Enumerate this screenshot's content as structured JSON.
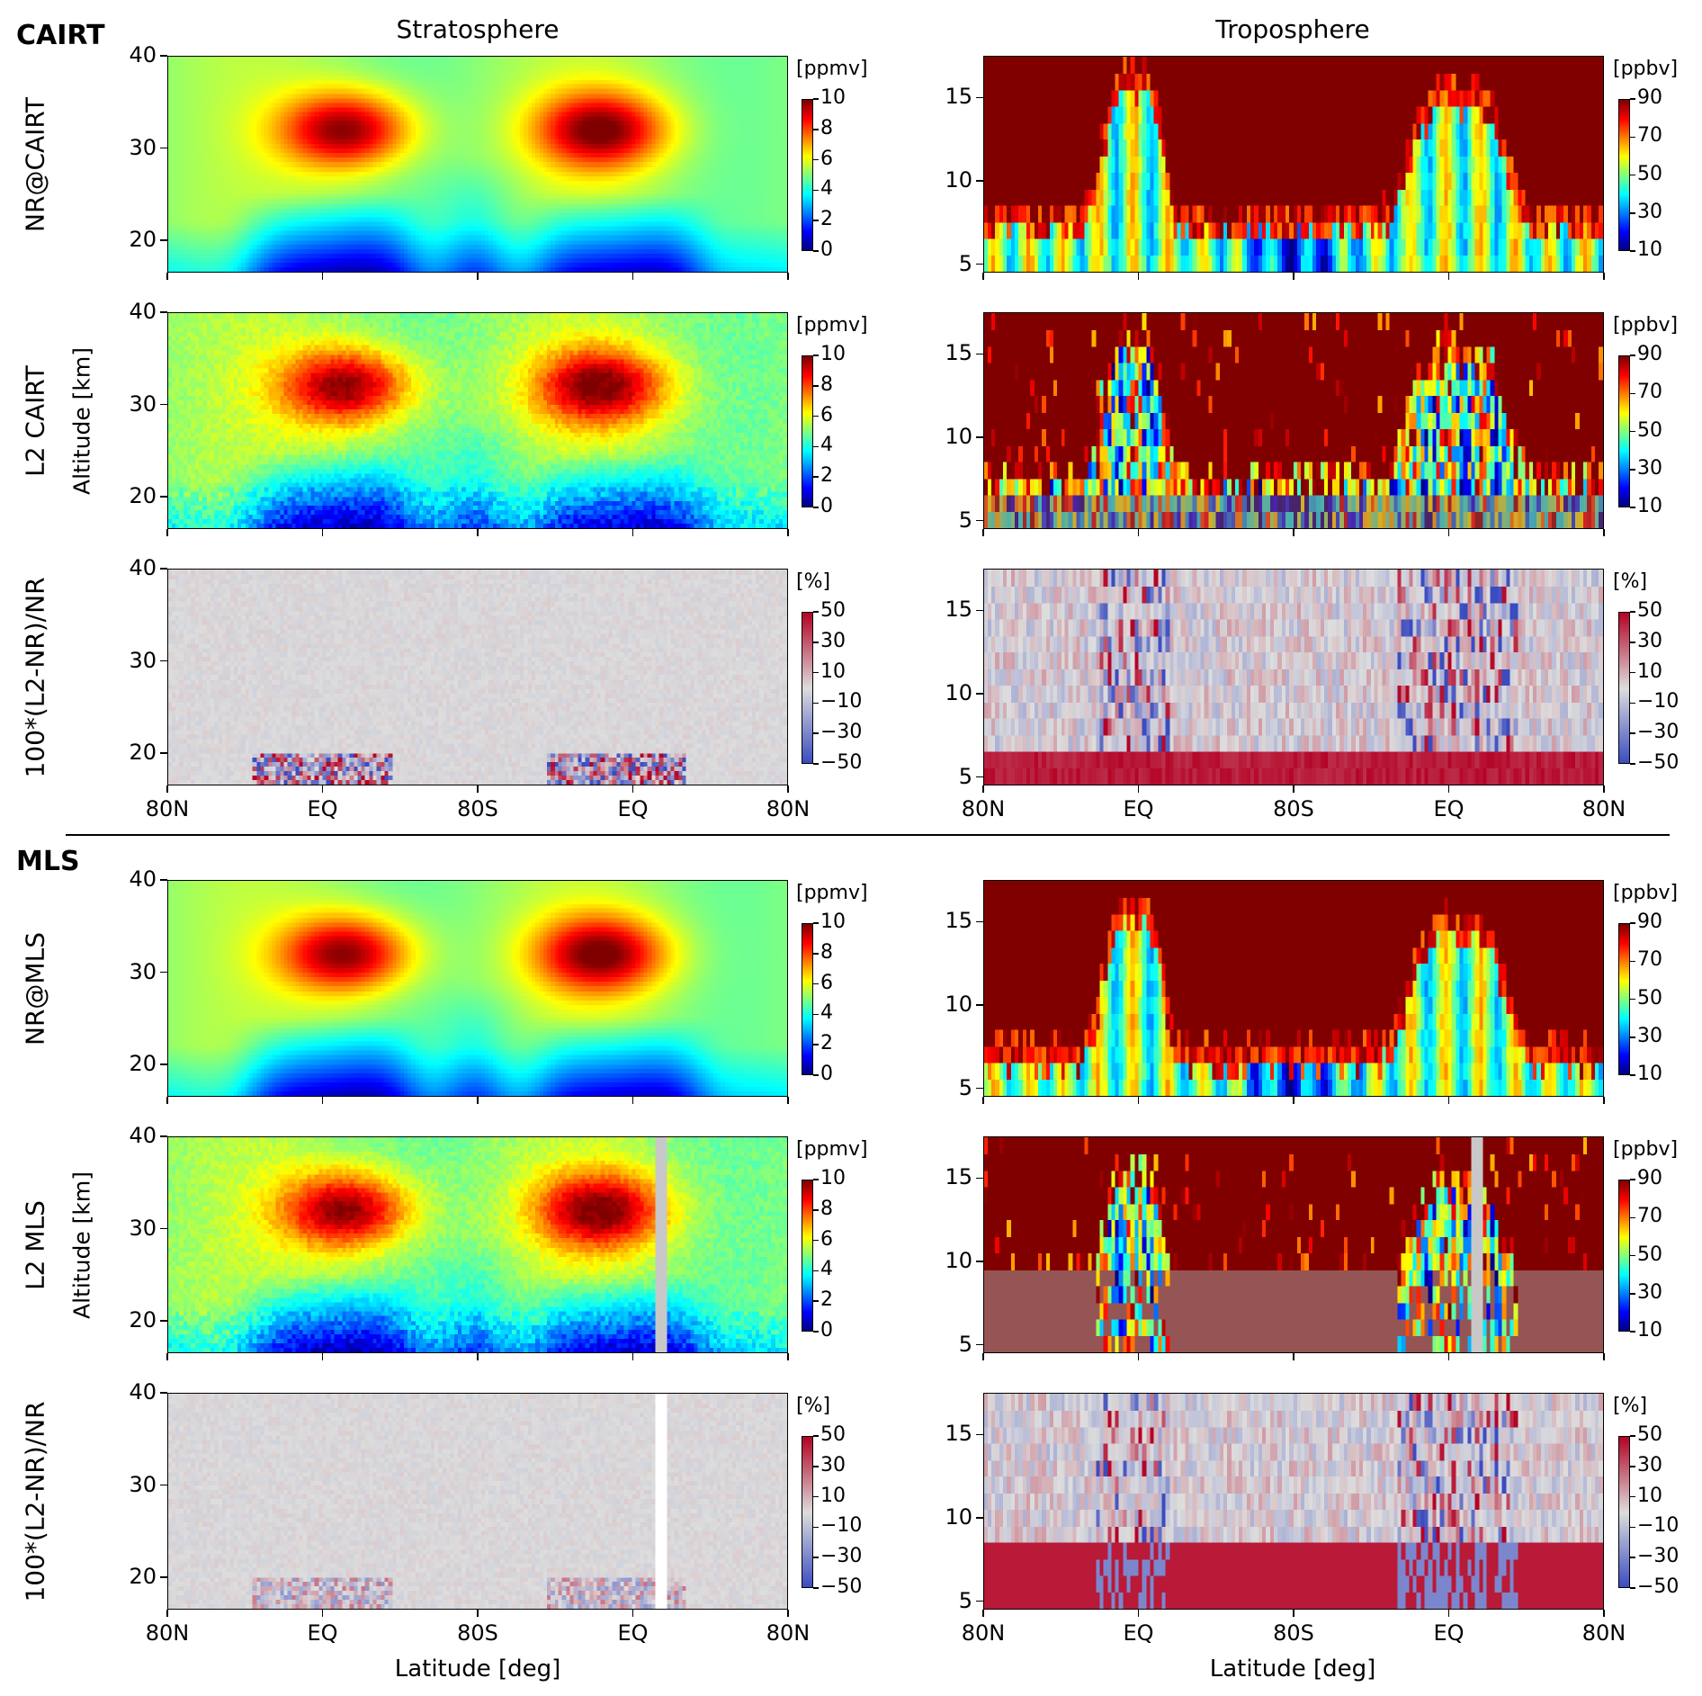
{
  "headers": {
    "cairt": "CAIRT",
    "mls": "MLS",
    "strat": "Stratosphere",
    "tropo": "Troposphere"
  },
  "row_labels": [
    "NR@CAIRT",
    "L2 CAIRT",
    "100*(L2-NR)/NR",
    "NR@MLS",
    "L2 MLS",
    "100*(L2-NR)/NR"
  ],
  "ylabel": "Altitude [km]",
  "xlabel": "Latitude [deg]",
  "chart_data": {
    "type": "heatmap",
    "x_ticks": [
      "80N",
      "EQ",
      "80S",
      "EQ",
      "80N"
    ],
    "strat": {
      "ylim": [
        16.5,
        40
      ],
      "yticks": [
        "20",
        "30",
        "40"
      ],
      "ytick_values": [
        20,
        30,
        40
      ]
    },
    "tropo": {
      "ylim": [
        4.5,
        17.5
      ],
      "yticks": [
        "5",
        "10",
        "15"
      ],
      "ytick_values": [
        5,
        10,
        15
      ]
    },
    "colorbars": {
      "strat_vmr": {
        "label": "[ppmv]",
        "range": [
          0,
          10
        ],
        "ticks": [
          "0",
          "2",
          "4",
          "6",
          "8",
          "10"
        ],
        "tick_values": [
          0,
          2,
          4,
          6,
          8,
          10
        ],
        "cmap": "jet"
      },
      "tropo_vmr": {
        "label": "[ppbv]",
        "range": [
          10,
          90
        ],
        "ticks": [
          "10",
          "30",
          "50",
          "70",
          "90"
        ],
        "tick_values": [
          10,
          30,
          50,
          70,
          90
        ],
        "cmap": "jet"
      },
      "diff": {
        "label": "[%]",
        "range": [
          -50,
          50
        ],
        "ticks": [
          "−50",
          "−30",
          "−10",
          "10",
          "30",
          "50"
        ],
        "tick_values": [
          -50,
          -30,
          -10,
          10,
          30,
          50
        ],
        "cmap": "coolwarm"
      }
    },
    "features": {
      "strat_ozone_maxima": [
        {
          "lat": "EQ",
          "orbit_pos": 1.15,
          "alt_km": 32,
          "value_ppmv": 10
        },
        {
          "lat": "EQ",
          "orbit_pos": 2.85,
          "alt_km": 32,
          "value_ppmv": 10
        }
      ],
      "strat_background_ppmv": 5,
      "strat_lower_tropics_ppmv": 0.5,
      "tropo_upper_saturated_ppbv": 90,
      "tropo_tropopause_extratropics_km": 8,
      "tropo_tropopause_tropics_km": 16,
      "mls_missing_profile_orbit_pos": 3.19,
      "mls_l2_tropo_min_alt_km": 9.5
    }
  }
}
